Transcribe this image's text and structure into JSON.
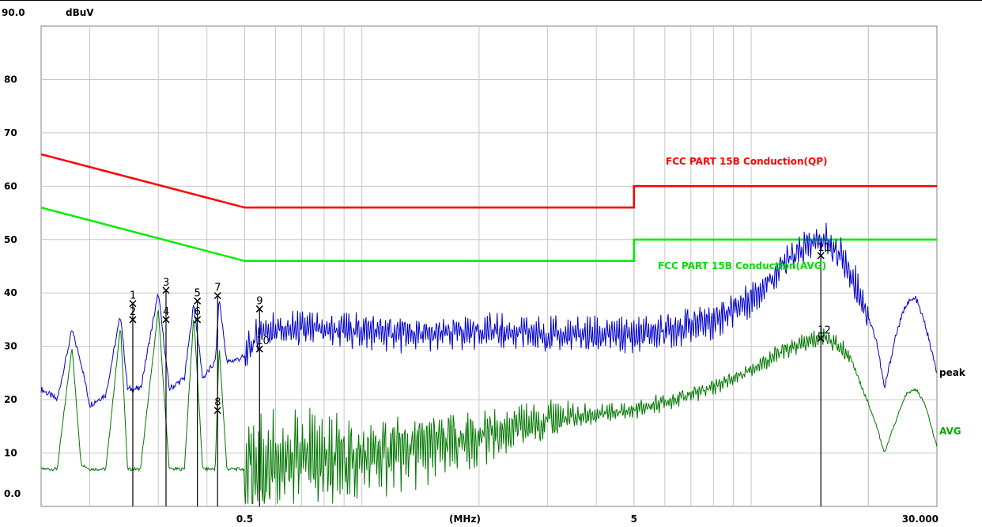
{
  "chart_data": {
    "type": "line",
    "title": "",
    "y_unit": "dBuV",
    "x_unit": "(MHz)",
    "y_top_label": "90.0",
    "y_tick_labels": [
      {
        "v": 80,
        "label": "80"
      },
      {
        "v": 70,
        "label": "70"
      },
      {
        "v": 60,
        "label": "60"
      },
      {
        "v": 50,
        "label": "50"
      },
      {
        "v": 40,
        "label": "40"
      },
      {
        "v": 30,
        "label": "30"
      },
      {
        "v": 20,
        "label": "20"
      },
      {
        "v": 10,
        "label": "10"
      },
      {
        "v": 0,
        "label": "0.0"
      }
    ],
    "x_tick_labels": [
      {
        "v": 0.5,
        "label": "0.5"
      },
      {
        "v": 5,
        "label": "5"
      },
      {
        "v": 30,
        "label": "30.000"
      }
    ],
    "xlim": [
      0.15,
      30
    ],
    "ylim": [
      0,
      90
    ],
    "x_scale": "log",
    "grid": true,
    "limit_lines": [
      {
        "name": "FCC PART 15B Conduction(QP)",
        "color": "#ff0000",
        "points": [
          [
            0.15,
            66
          ],
          [
            0.5,
            56
          ],
          [
            5,
            56
          ],
          [
            5,
            60
          ],
          [
            30,
            60
          ]
        ]
      },
      {
        "name": "FCC PART 15B Conduction(AVG)",
        "color": "#00ee00",
        "points": [
          [
            0.15,
            56
          ],
          [
            0.5,
            46
          ],
          [
            5,
            46
          ],
          [
            5,
            50
          ],
          [
            30,
            50
          ]
        ]
      }
    ],
    "series": [
      {
        "name": "peak",
        "color": "#0000cc",
        "points": [
          [
            0.15,
            22
          ],
          [
            0.165,
            20
          ],
          [
            0.18,
            33
          ],
          [
            0.19,
            27
          ],
          [
            0.2,
            19
          ],
          [
            0.22,
            21
          ],
          [
            0.24,
            36
          ],
          [
            0.25,
            22
          ],
          [
            0.27,
            22
          ],
          [
            0.3,
            40
          ],
          [
            0.32,
            22
          ],
          [
            0.35,
            24
          ],
          [
            0.37,
            38
          ],
          [
            0.39,
            24
          ],
          [
            0.42,
            27
          ],
          [
            0.43,
            39
          ],
          [
            0.45,
            27
          ],
          [
            0.5,
            28
          ],
          [
            0.55,
            33
          ],
          [
            0.6,
            33
          ],
          [
            0.8,
            33
          ],
          [
            1.0,
            33
          ],
          [
            1.5,
            32
          ],
          [
            2,
            33
          ],
          [
            3,
            32
          ],
          [
            4,
            32
          ],
          [
            5,
            32
          ],
          [
            6,
            33
          ],
          [
            8,
            35
          ],
          [
            10,
            39
          ],
          [
            12,
            45
          ],
          [
            14,
            49
          ],
          [
            15.5,
            50
          ],
          [
            17,
            47
          ],
          [
            19,
            40
          ],
          [
            21,
            31
          ],
          [
            22,
            22
          ],
          [
            23.5,
            32
          ],
          [
            25,
            38
          ],
          [
            26.5,
            39
          ],
          [
            28,
            34
          ],
          [
            30,
            25
          ]
        ]
      },
      {
        "name": "AVG",
        "color": "#007700",
        "points": [
          [
            0.15,
            7
          ],
          [
            0.165,
            7
          ],
          [
            0.18,
            30
          ],
          [
            0.19,
            8
          ],
          [
            0.2,
            7
          ],
          [
            0.22,
            7
          ],
          [
            0.24,
            34
          ],
          [
            0.25,
            7
          ],
          [
            0.27,
            7
          ],
          [
            0.3,
            37
          ],
          [
            0.32,
            7
          ],
          [
            0.35,
            7
          ],
          [
            0.37,
            36
          ],
          [
            0.39,
            7
          ],
          [
            0.42,
            7
          ],
          [
            0.43,
            30
          ],
          [
            0.45,
            7
          ],
          [
            0.5,
            7
          ],
          [
            1,
            9
          ],
          [
            2,
            13
          ],
          [
            3,
            16
          ],
          [
            5,
            18
          ],
          [
            7,
            21
          ],
          [
            9,
            24
          ],
          [
            12,
            29
          ],
          [
            15.5,
            32
          ],
          [
            18,
            28
          ],
          [
            21,
            15
          ],
          [
            22,
            10
          ],
          [
            23.5,
            16
          ],
          [
            25,
            21
          ],
          [
            26.5,
            22
          ],
          [
            28,
            19
          ],
          [
            30,
            11
          ]
        ]
      }
    ],
    "markers": [
      {
        "n": "1",
        "x": 0.258,
        "y": 38,
        "stem": true
      },
      {
        "n": "2",
        "x": 0.258,
        "y": 35,
        "stem": false
      },
      {
        "n": "3",
        "x": 0.314,
        "y": 40.5,
        "stem": true
      },
      {
        "n": "4",
        "x": 0.314,
        "y": 35,
        "stem": false
      },
      {
        "n": "5",
        "x": 0.378,
        "y": 38.5,
        "stem": true
      },
      {
        "n": "6",
        "x": 0.378,
        "y": 35,
        "stem": false
      },
      {
        "n": "7",
        "x": 0.426,
        "y": 39.5,
        "stem": true
      },
      {
        "n": "8",
        "x": 0.426,
        "y": 18,
        "stem": false
      },
      {
        "n": "9",
        "x": 0.546,
        "y": 37,
        "stem": true
      },
      {
        "n": "10",
        "x": 0.546,
        "y": 29.5,
        "stem": false
      },
      {
        "n": "11",
        "x": 15.1,
        "y": 47,
        "stem": true
      },
      {
        "n": "12",
        "x": 15.1,
        "y": 31.5,
        "stem": false
      }
    ],
    "annotations": [
      "FCC PART 15B Conduction(QP)",
      "FCC PART 15B Conduction(AVG)",
      "peak",
      "AVG"
    ]
  }
}
